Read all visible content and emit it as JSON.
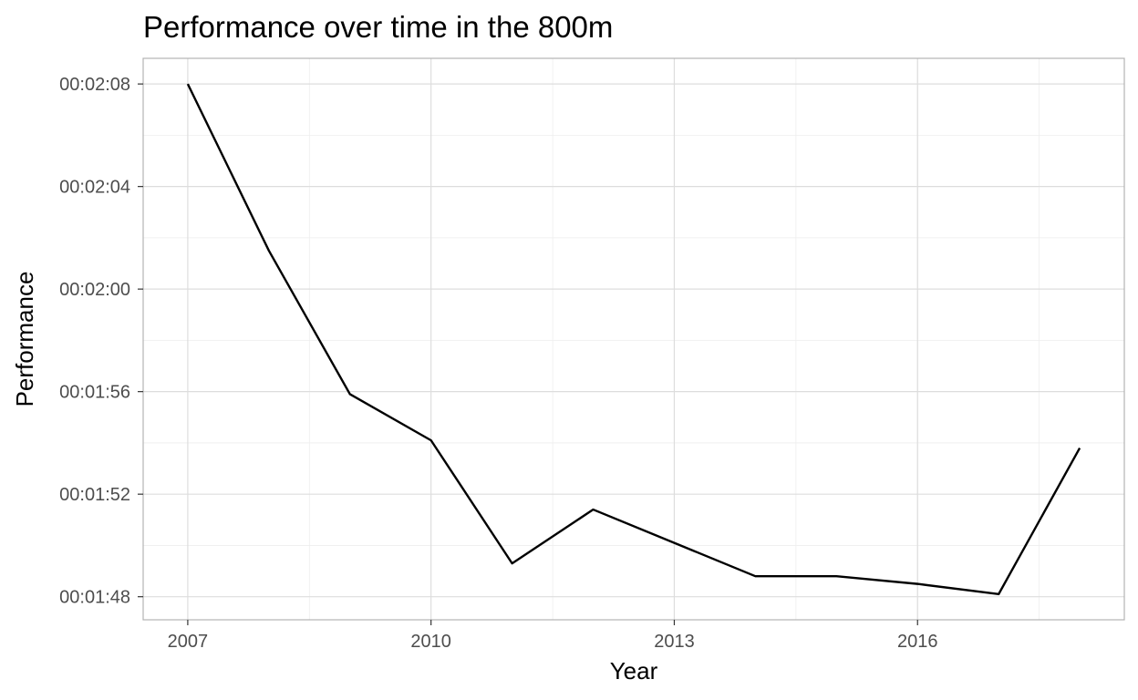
{
  "chart_data": {
    "type": "line",
    "title": "Performance over time in the 800m",
    "xlabel": "Year",
    "ylabel": "Performance",
    "x": [
      2007,
      2008,
      2009,
      2010,
      2011,
      2012,
      2013,
      2014,
      2015,
      2016,
      2017,
      2018
    ],
    "series": [
      {
        "values": [
          "00:02:08",
          "00:02:01.5",
          "00:01:55.9",
          "00:01:54.1",
          "00:01:49.3",
          "00:01:51.4",
          "00:01:50.1",
          "00:01:48.8",
          "00:01:48.8",
          "00:01:48.5",
          "00:01:48.1",
          "00:01:53.8"
        ]
      }
    ],
    "xlim": [
      2006.45,
      2018.55
    ],
    "ylim": [
      "00:01:47.1",
      "00:02:09"
    ],
    "x_ticks": [
      2007,
      2010,
      2013,
      2016
    ],
    "x_minor_ticks": [
      2008.5,
      2011.5,
      2014.5,
      2017.5
    ],
    "y_ticks": [
      "00:01:48",
      "00:01:52",
      "00:01:56",
      "00:02:00",
      "00:02:04",
      "00:02:08"
    ],
    "grid": true,
    "legend": "none",
    "line_color": "#000000"
  }
}
